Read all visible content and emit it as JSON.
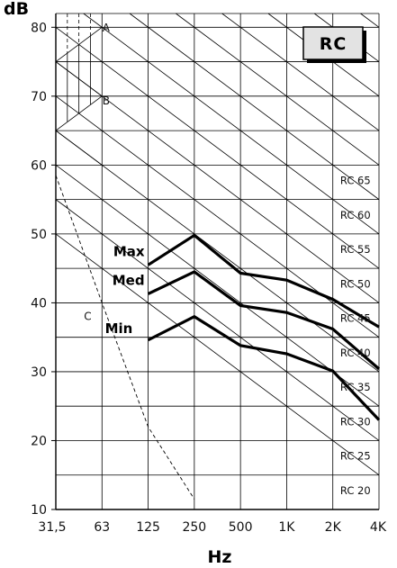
{
  "chart_data": {
    "type": "line",
    "badge": "RC",
    "ylabel": "dB",
    "xlabel": "Hz",
    "x_ticks": [
      "31,5",
      "63",
      "125",
      "250",
      "500",
      "1K",
      "2K",
      "4K"
    ],
    "y_ticks": [
      10,
      20,
      30,
      40,
      50,
      60,
      70,
      80
    ],
    "ylim": [
      10,
      82
    ],
    "grid": true,
    "series": [
      {
        "name": "Max",
        "x": [
          "125",
          "250",
          "500",
          "1K",
          "2K",
          "4K"
        ],
        "values": [
          45.5,
          49.8,
          44.3,
          43.3,
          40.5,
          36.5
        ]
      },
      {
        "name": "Med",
        "x": [
          "125",
          "250",
          "500",
          "1K",
          "2K",
          "4K"
        ],
        "values": [
          41.3,
          44.5,
          39.6,
          38.6,
          36.2,
          30.4
        ]
      },
      {
        "name": "Min",
        "x": [
          "125",
          "250",
          "500",
          "1K",
          "2K",
          "4K"
        ],
        "values": [
          34.6,
          38.0,
          33.8,
          32.6,
          30.1,
          23.0
        ]
      }
    ],
    "rc_curves": [
      {
        "label": "RC 65",
        "value": 65
      },
      {
        "label": "RC 60",
        "value": 60
      },
      {
        "label": "RC 55",
        "value": 55
      },
      {
        "label": "RC 50",
        "value": 50
      },
      {
        "label": "RC 45",
        "value": 45
      },
      {
        "label": "RC 40",
        "value": 40
      },
      {
        "label": "RC 35",
        "value": 35
      },
      {
        "label": "RC 30",
        "value": 30
      },
      {
        "label": "RC 25",
        "value": 25
      },
      {
        "label": "RC 20",
        "value": 20
      }
    ],
    "region_labels": [
      "A",
      "B",
      "C"
    ],
    "threshold_curve_C": [
      [
        0.0,
        58.5
      ],
      [
        1.0,
        40.0
      ],
      [
        2.0,
        22.0
      ],
      [
        3.0,
        11.5
      ]
    ]
  }
}
